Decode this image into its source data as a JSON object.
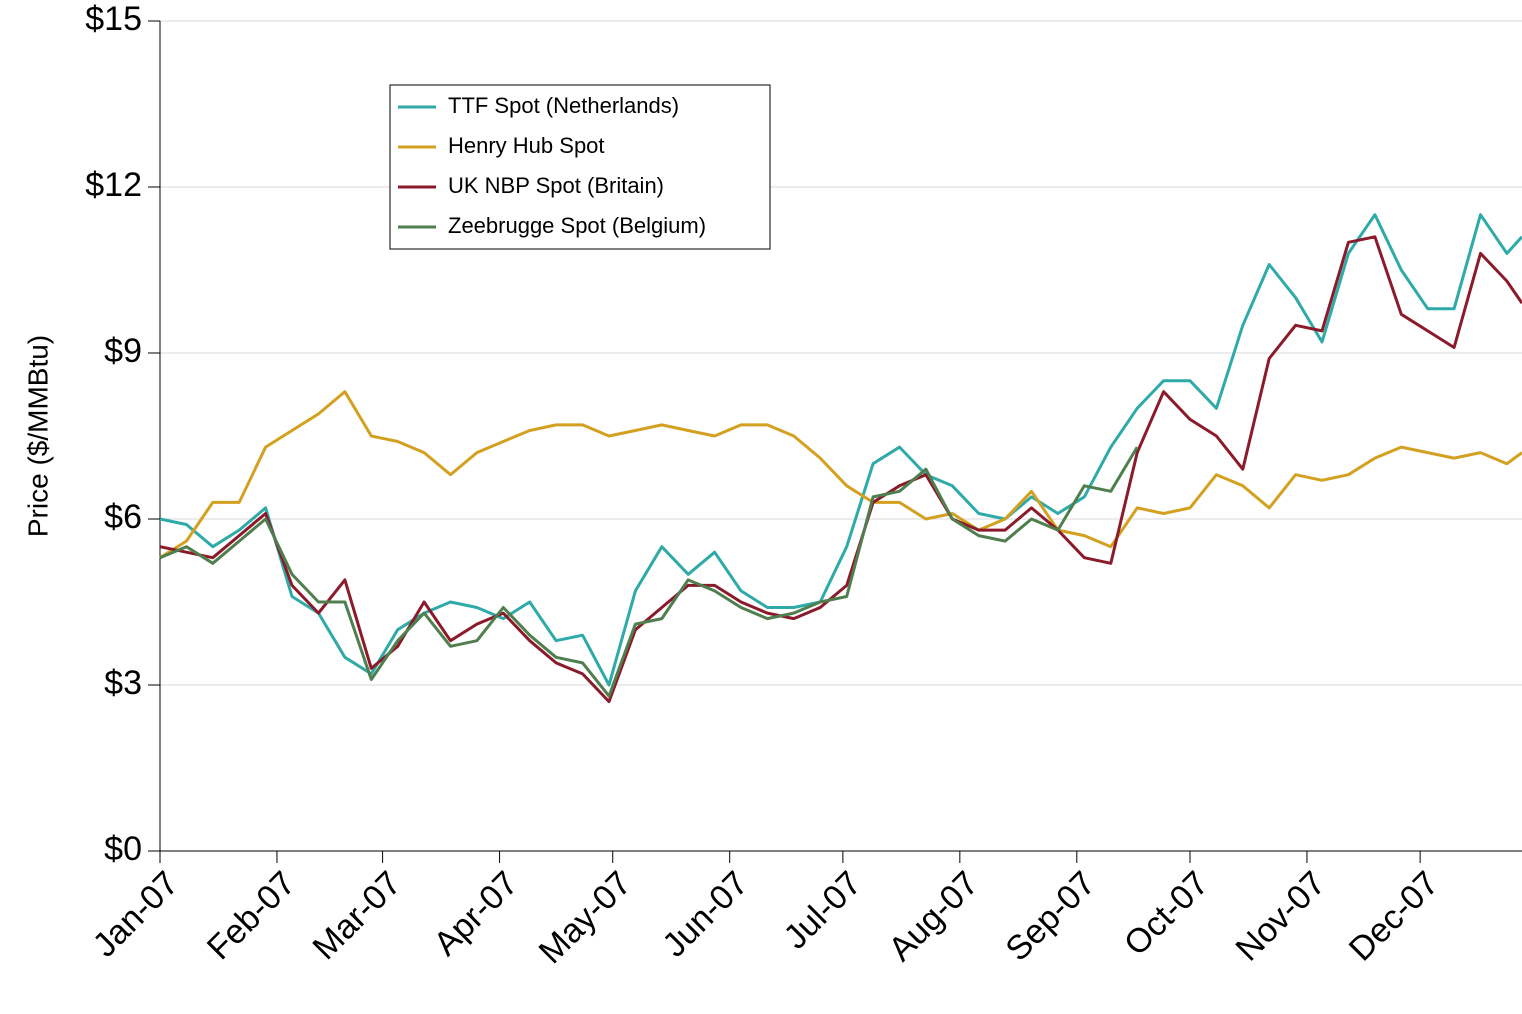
{
  "chart_data": {
    "type": "line",
    "y_label": "Price ($/MMBtu)",
    "x": [
      0,
      7,
      14,
      21,
      28,
      35,
      42,
      49,
      56,
      63,
      70,
      77,
      84,
      91,
      98,
      105,
      112,
      119,
      126,
      133,
      140,
      147,
      154,
      161,
      168,
      175,
      182,
      189,
      196,
      203,
      210,
      217,
      224,
      231,
      238,
      245,
      252,
      259,
      266,
      273,
      280,
      287,
      294,
      301,
      308,
      315,
      322,
      329,
      336,
      343,
      350,
      357,
      361
    ],
    "xlim": [
      0,
      361
    ],
    "xticks": [
      {
        "value": 0,
        "label": "Jan-07"
      },
      {
        "value": 31,
        "label": "Feb-07"
      },
      {
        "value": 59,
        "label": "Mar-07"
      },
      {
        "value": 90,
        "label": "Apr-07"
      },
      {
        "value": 120,
        "label": "May-07"
      },
      {
        "value": 151,
        "label": "Jun-07"
      },
      {
        "value": 181,
        "label": "Jul-07"
      },
      {
        "value": 212,
        "label": "Aug-07"
      },
      {
        "value": 243,
        "label": "Sep-07"
      },
      {
        "value": 273,
        "label": "Oct-07"
      },
      {
        "value": 304,
        "label": "Nov-07"
      },
      {
        "value": 334,
        "label": "Dec-07"
      }
    ],
    "ylim": [
      0,
      15
    ],
    "yticks": [
      {
        "value": 0,
        "label": "$0"
      },
      {
        "value": 3,
        "label": "$3"
      },
      {
        "value": 6,
        "label": "$6"
      },
      {
        "value": 9,
        "label": "$9"
      },
      {
        "value": 12,
        "label": "$12"
      },
      {
        "value": 15,
        "label": "$15"
      }
    ],
    "grid": true,
    "legend": "top-left",
    "series": [
      {
        "name": "TTF Spot (Netherlands)",
        "color": "#2eaaa8",
        "values": [
          6.0,
          5.9,
          5.5,
          5.8,
          6.2,
          4.6,
          4.3,
          3.5,
          3.2,
          4.0,
          4.3,
          4.5,
          4.4,
          4.2,
          4.5,
          3.8,
          3.9,
          3.0,
          4.7,
          5.5,
          5.0,
          5.4,
          4.7,
          4.4,
          4.4,
          4.5,
          5.5,
          7.0,
          7.3,
          6.8,
          6.6,
          6.1,
          6.0,
          6.4,
          6.1,
          6.4,
          7.3,
          8.0,
          8.5,
          8.5,
          8.0,
          9.5,
          10.6,
          10.0,
          9.2,
          10.8,
          11.5,
          10.5,
          9.8,
          9.8,
          11.5,
          10.8,
          11.1
        ]
      },
      {
        "name": "Henry Hub Spot",
        "color": "#d4a020",
        "values": [
          5.3,
          5.6,
          6.3,
          6.3,
          7.3,
          7.6,
          7.9,
          8.3,
          7.5,
          7.4,
          7.2,
          6.8,
          7.2,
          7.4,
          7.6,
          7.7,
          7.7,
          7.5,
          7.6,
          7.7,
          7.6,
          7.5,
          7.7,
          7.7,
          7.5,
          7.1,
          6.6,
          6.3,
          6.3,
          6.0,
          6.1,
          5.8,
          6.0,
          6.5,
          5.8,
          5.7,
          5.5,
          6.2,
          6.1,
          6.2,
          6.8,
          6.6,
          6.2,
          6.8,
          6.7,
          6.8,
          7.1,
          7.3,
          7.2,
          7.1,
          7.2,
          7.0,
          7.2
        ]
      },
      {
        "name": "UK NBP Spot (Britain)",
        "color": "#8b1a2a",
        "values": [
          5.5,
          5.4,
          5.3,
          5.7,
          6.1,
          4.8,
          4.3,
          4.9,
          3.3,
          3.7,
          4.5,
          3.8,
          4.1,
          4.3,
          3.8,
          3.4,
          3.2,
          2.7,
          4.0,
          4.4,
          4.8,
          4.8,
          4.5,
          4.3,
          4.2,
          4.4,
          4.8,
          6.3,
          6.6,
          6.8,
          6.0,
          5.8,
          5.8,
          6.2,
          5.8,
          5.3,
          5.2,
          7.2,
          8.3,
          7.8,
          7.5,
          6.9,
          8.9,
          9.5,
          9.4,
          11.0,
          11.1,
          9.7,
          9.4,
          9.1,
          10.8,
          10.3,
          9.9
        ]
      },
      {
        "name": "Zeebrugge Spot (Belgium)",
        "color": "#4f7f4f",
        "values": [
          5.3,
          5.5,
          5.2,
          5.6,
          6.0,
          5.0,
          4.5,
          4.5,
          3.1,
          3.8,
          4.3,
          3.7,
          3.8,
          4.4,
          3.9,
          3.5,
          3.4,
          2.8,
          4.1,
          4.2,
          4.9,
          4.7,
          4.4,
          4.2,
          4.3,
          4.5,
          4.6,
          6.4,
          6.5,
          6.9,
          6.0,
          5.7,
          5.6,
          6.0,
          5.8,
          6.6,
          6.5,
          7.3,
          null,
          null,
          null,
          null,
          null,
          null,
          null,
          null,
          null,
          null,
          null,
          null,
          null,
          null,
          null
        ]
      }
    ]
  }
}
